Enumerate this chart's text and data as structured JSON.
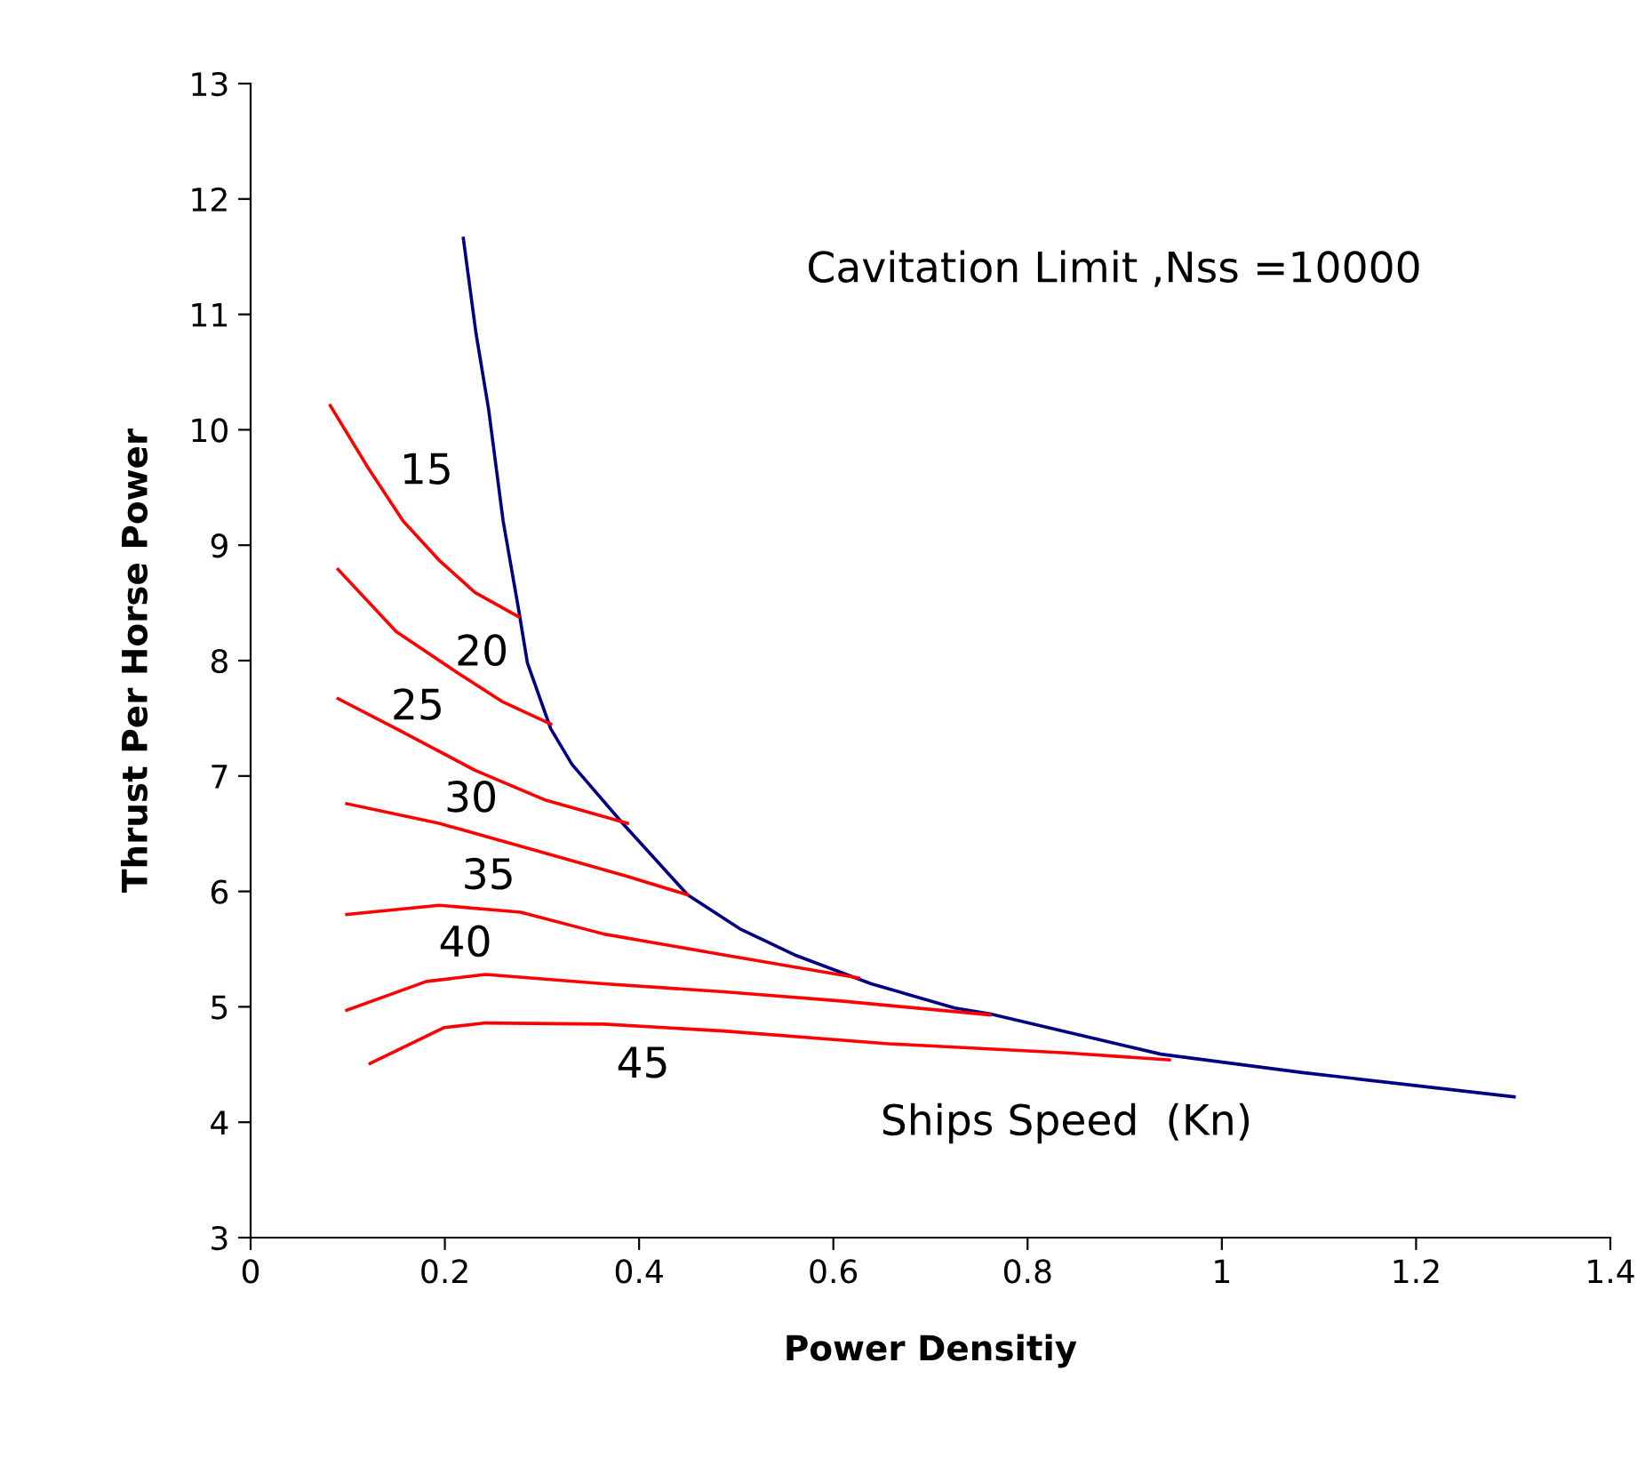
{
  "chart_data": {
    "type": "line",
    "xlabel": "Power Densitiy",
    "ylabel": "Thrust Per Horse Power",
    "xlim": [
      0,
      1.4
    ],
    "ylim": [
      3,
      13
    ],
    "xticks": [
      0,
      0.2,
      0.4,
      0.6,
      0.8,
      1,
      1.2,
      1.4
    ],
    "yticks": [
      3,
      4,
      5,
      6,
      7,
      8,
      9,
      10,
      11,
      12,
      13
    ],
    "grid": false,
    "legend": false,
    "marker": "none",
    "line_style": "solid",
    "series": [
      {
        "color": "#000080",
        "x": [
          0.219,
          0.232,
          0.245,
          0.26,
          0.276,
          0.285,
          0.309,
          0.331,
          0.383,
          0.45,
          0.505,
          0.56,
          0.639,
          0.725,
          0.761,
          0.937,
          1.083,
          1.301
        ],
        "values": [
          11.66,
          10.84,
          10.18,
          9.21,
          8.44,
          7.98,
          7.41,
          7.1,
          6.59,
          5.97,
          5.67,
          5.45,
          5.2,
          4.99,
          4.94,
          4.59,
          4.43,
          4.22
        ]
      },
      {
        "name": "15",
        "color": "#ff0000",
        "x": [
          0.082,
          0.121,
          0.157,
          0.194,
          0.231,
          0.276
        ],
        "values": [
          10.21,
          9.67,
          9.21,
          8.87,
          8.59,
          8.38
        ]
      },
      {
        "name": "20",
        "color": "#ff0000",
        "x": [
          0.09,
          0.15,
          0.212,
          0.26,
          0.309
        ],
        "values": [
          8.79,
          8.25,
          7.9,
          7.64,
          7.45
        ]
      },
      {
        "name": "25",
        "color": "#ff0000",
        "x": [
          0.09,
          0.15,
          0.231,
          0.304,
          0.388
        ],
        "values": [
          7.67,
          7.41,
          7.05,
          6.79,
          6.59
        ]
      },
      {
        "name": "30",
        "color": "#ff0000",
        "x": [
          0.099,
          0.194,
          0.304,
          0.388,
          0.45
        ],
        "values": [
          6.76,
          6.59,
          6.33,
          6.13,
          5.97
        ]
      },
      {
        "name": "35",
        "color": "#ff0000",
        "x": [
          0.099,
          0.194,
          0.278,
          0.364,
          0.487,
          0.626
        ],
        "values": [
          5.8,
          5.88,
          5.82,
          5.63,
          5.45,
          5.25
        ]
      },
      {
        "name": "40",
        "color": "#ff0000",
        "x": [
          0.099,
          0.181,
          0.242,
          0.364,
          0.487,
          0.608,
          0.761
        ],
        "values": [
          4.97,
          5.22,
          5.28,
          5.2,
          5.13,
          5.05,
          4.93
        ]
      },
      {
        "name": "45",
        "color": "#ff0000",
        "x": [
          0.123,
          0.199,
          0.242,
          0.364,
          0.487,
          0.657,
          0.84,
          0.946
        ],
        "values": [
          4.51,
          4.82,
          4.86,
          4.85,
          4.79,
          4.68,
          4.6,
          4.54
        ]
      }
    ],
    "annotations": [
      "Cavitation Limit ,Nss =10000",
      "Ships Speed  (Kn)"
    ]
  }
}
